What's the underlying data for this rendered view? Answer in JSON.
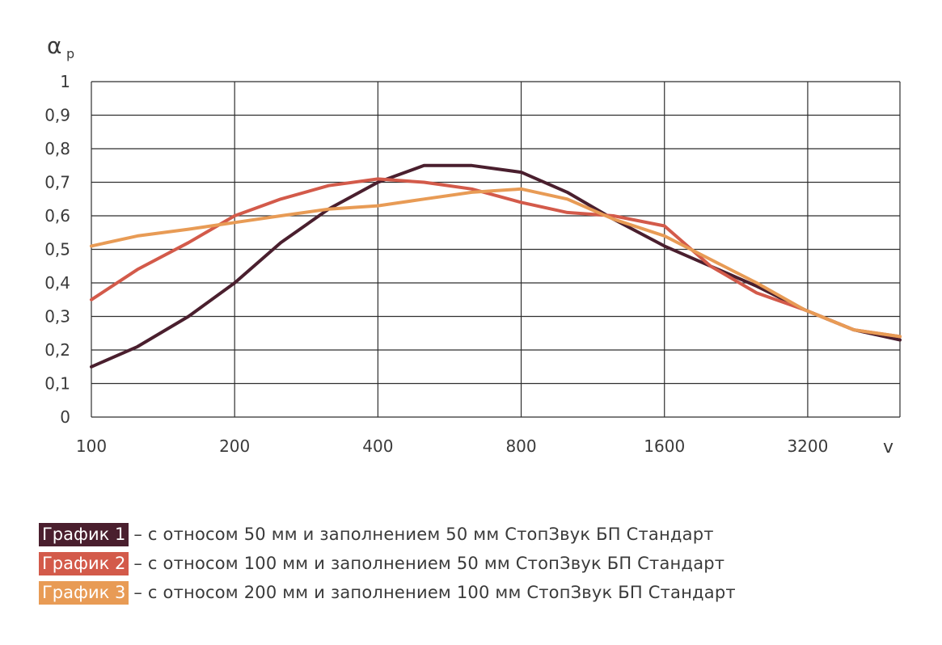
{
  "chart_data": {
    "type": "line",
    "ylabel": "α",
    "ylabel_sub": "p",
    "xlabel": "v",
    "x_scale": "log2",
    "xlim": [
      100,
      5000
    ],
    "ylim": [
      0,
      1
    ],
    "grid": true,
    "x_ticks": [
      100,
      200,
      400,
      800,
      1600,
      3200
    ],
    "x_tick_labels": [
      "100",
      "200",
      "400",
      "800",
      "1600",
      "3200"
    ],
    "y_ticks": [
      0,
      0.1,
      0.2,
      0.3,
      0.4,
      0.5,
      0.6,
      0.7,
      0.8,
      0.9,
      1
    ],
    "y_tick_labels": [
      "0",
      "0,1",
      "0,2",
      "0,3",
      "0,4",
      "0,5",
      "0,6",
      "0,7",
      "0,8",
      "0,9",
      "1"
    ],
    "x": [
      100,
      125,
      160,
      200,
      250,
      315,
      400,
      500,
      630,
      800,
      1000,
      1250,
      1600,
      2000,
      2500,
      3150,
      4000,
      5000
    ],
    "series": [
      {
        "name": "График 1",
        "color": "#4a1f2e",
        "values": [
          0.15,
          0.21,
          0.3,
          0.4,
          0.52,
          0.62,
          0.7,
          0.75,
          0.75,
          0.73,
          0.67,
          0.59,
          0.51,
          0.45,
          0.39,
          0.32,
          0.26,
          0.23
        ]
      },
      {
        "name": "График 2",
        "color": "#d35a4a",
        "values": [
          0.35,
          0.44,
          0.52,
          0.6,
          0.65,
          0.69,
          0.71,
          0.7,
          0.68,
          0.64,
          0.61,
          0.6,
          0.57,
          0.45,
          0.37,
          0.32,
          0.26,
          0.24
        ]
      },
      {
        "name": "График 3",
        "color": "#e89b55",
        "values": [
          0.51,
          0.54,
          0.56,
          0.58,
          0.6,
          0.62,
          0.63,
          0.65,
          0.67,
          0.68,
          0.65,
          0.59,
          0.54,
          0.47,
          0.4,
          0.32,
          0.26,
          0.24
        ]
      }
    ]
  },
  "legend": [
    {
      "badge": "График 1",
      "text": "– с относом 50 мм и заполнением 50 мм СтопЗвук БП Стандарт",
      "color": "#4a1f2e"
    },
    {
      "badge": "График 2",
      "text": "– с относом 100 мм и заполнением 50 мм СтопЗвук БП Стандарт",
      "color": "#d35a4a"
    },
    {
      "badge": "График 3",
      "text": "– с относом 200 мм и заполнением 100 мм СтопЗвук БП Стандарт",
      "color": "#e89b55"
    }
  ]
}
